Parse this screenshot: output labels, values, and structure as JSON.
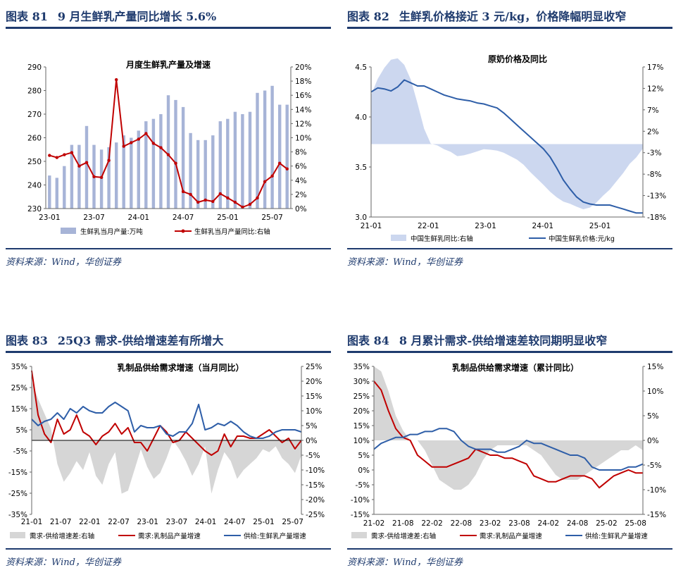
{
  "panels": [
    {
      "title_num": "图表 81",
      "title_text": "9 月生鲜乳产量同比增长 5.6%",
      "source": "资料来源：Wind，华创证券"
    },
    {
      "title_num": "图表 82",
      "title_text": "生鲜乳价格接近 3 元/kg，价格降幅明显收窄",
      "source": "资料来源：Wind，华创证券"
    },
    {
      "title_num": "图表 83",
      "title_text": "25Q3 需求-供给增速差有所增大",
      "source": "资料来源：Wind，华创证券"
    },
    {
      "title_num": "图表 84",
      "title_text": "8 月累计需求-供给增速差较同期明显收窄",
      "source": "资料来源：Wind，华创证券"
    }
  ],
  "colors": {
    "navy": "#1f3b6e",
    "bar": "#a7b4d7",
    "red": "#c00000",
    "blue": "#2e5ea8",
    "lightblue": "#ccd7ef",
    "gray": "#d6d6d6"
  },
  "chart_data": [
    {
      "type": "bar",
      "title": "月度生鲜乳产量及增速",
      "categories": [
        "23-01",
        "23-02",
        "23-03",
        "23-04",
        "23-05",
        "23-06",
        "23-07",
        "23-08",
        "23-09",
        "23-10",
        "23-11",
        "23-12",
        "24-01",
        "24-02",
        "24-03",
        "24-04",
        "24-05",
        "24-06",
        "24-07",
        "24-08",
        "24-09",
        "24-10",
        "24-11",
        "24-12",
        "25-01",
        "25-02",
        "25-03",
        "25-04",
        "25-05",
        "25-06",
        "25-07",
        "25-08",
        "25-09"
      ],
      "x_tick_labels": [
        "23-01",
        "23-07",
        "24-01",
        "24-07",
        "25-01",
        "25-07"
      ],
      "series": [
        {
          "name": "生鲜乳当月产量:万吨",
          "type": "bar",
          "axis": "left",
          "values": [
            244,
            243,
            248,
            257,
            257,
            265,
            257,
            255,
            256,
            258,
            261,
            260,
            263,
            267,
            268,
            270,
            278,
            276,
            273,
            262,
            259,
            259,
            261,
            267,
            268,
            271,
            270,
            271,
            279,
            280,
            282,
            274,
            274
          ]
        },
        {
          "name": "生鲜乳当月产量同比:右轴",
          "type": "line",
          "axis": "right",
          "values": [
            7.5,
            7.2,
            7.6,
            7.9,
            6.0,
            6.5,
            4.5,
            4.4,
            6.8,
            18.2,
            8.8,
            9.3,
            9.8,
            10.6,
            9.2,
            8.6,
            7.6,
            6.4,
            2.4,
            2.0,
            0.9,
            1.2,
            1.0,
            2.1,
            1.5,
            0.9,
            0.2,
            0.6,
            1.5,
            3.8,
            4.6,
            6.4,
            5.6
          ]
        }
      ],
      "ylim_left": [
        230,
        290
      ],
      "yticks_left": [
        230,
        240,
        250,
        260,
        270,
        280,
        290
      ],
      "ylim_right": [
        0,
        20
      ],
      "yticks_right": [
        "0%",
        "2%",
        "4%",
        "6%",
        "8%",
        "10%",
        "12%",
        "14%",
        "16%",
        "18%",
        "20%"
      ]
    },
    {
      "type": "area",
      "title": "原奶价格及同比",
      "x_tick_labels": [
        "21-01",
        "22-01",
        "23-01",
        "24-01",
        "25-01"
      ],
      "series": [
        {
          "name": "中国生鲜乳同比:右轴",
          "type": "area",
          "axis": "right",
          "values": [
            10.5,
            14.2,
            16.8,
            18.7,
            19.0,
            17.5,
            14.0,
            8.5,
            2.6,
            -0.9,
            -1.3,
            -2.2,
            -2.8,
            -3.8,
            -3.6,
            -3.2,
            -2.7,
            -2.2,
            -2.3,
            -2.5,
            -3.0,
            -3.8,
            -4.6,
            -5.8,
            -7.5,
            -9.0,
            -10.5,
            -12.1,
            -13.4,
            -14.4,
            -14.9,
            -15.6,
            -16.2,
            -15.8,
            -14.6,
            -13.0,
            -11.6,
            -9.7,
            -7.8,
            -5.6,
            -4.1,
            -2.0
          ]
        },
        {
          "name": "中国生鲜乳价格:元/kg",
          "type": "line",
          "axis": "left",
          "values": [
            4.25,
            4.29,
            4.28,
            4.26,
            4.3,
            4.37,
            4.34,
            4.31,
            4.31,
            4.28,
            4.25,
            4.22,
            4.2,
            4.18,
            4.17,
            4.16,
            4.14,
            4.13,
            4.11,
            4.09,
            4.04,
            3.98,
            3.92,
            3.86,
            3.8,
            3.74,
            3.68,
            3.6,
            3.49,
            3.37,
            3.28,
            3.2,
            3.15,
            3.13,
            3.12,
            3.12,
            3.12,
            3.1,
            3.08,
            3.06,
            3.04,
            3.04
          ]
        }
      ],
      "ylim_left": [
        3.0,
        4.5
      ],
      "yticks_left": [
        "3.0",
        "3.5",
        "4.0",
        "4.5"
      ],
      "ylim_right": [
        -18,
        17
      ],
      "yticks_right": [
        "-18%",
        "-13%",
        "-8%",
        "-3%",
        "2%",
        "7%",
        "12%",
        "17%"
      ]
    },
    {
      "type": "line",
      "title": "乳制品供给需求增速（当月同比）",
      "x_tick_labels": [
        "21-01",
        "21-07",
        "22-01",
        "22-07",
        "23-01",
        "23-07",
        "24-01",
        "24-07",
        "25-01",
        "25-07"
      ],
      "series": [
        {
          "name": "需求-供给增速差:右轴",
          "type": "area",
          "axis": "right",
          "values": [
            20,
            14,
            9,
            4,
            -8,
            -14,
            -11,
            -7,
            -10,
            -4,
            -12,
            -15,
            -8,
            -4,
            -18,
            -17,
            -10,
            -3,
            -9,
            -13,
            -11,
            -6,
            0,
            -3,
            -7,
            -12,
            -8,
            -2,
            -18,
            -10,
            -4,
            -7,
            -13,
            -10,
            -8,
            -6,
            -3,
            -4,
            -2,
            -6,
            -8,
            -11,
            -5
          ]
        },
        {
          "name": "需求:乳制品产量增速",
          "type": "line",
          "axis": "left",
          "values": [
            33,
            12,
            3,
            -1,
            10,
            3,
            5,
            12,
            4,
            2,
            -2,
            2,
            4,
            8,
            3,
            6,
            -1,
            -1,
            -5,
            1,
            7,
            4,
            -1,
            0,
            4,
            1,
            -2,
            -5,
            -7,
            -5,
            3,
            -3,
            2,
            2,
            1,
            1,
            3,
            5,
            2,
            -1,
            1,
            -4,
            0
          ]
        },
        {
          "name": "供给:生鲜乳产量增速",
          "type": "line",
          "axis": "left",
          "values": [
            10,
            7,
            9,
            10,
            13,
            10,
            15,
            13,
            16,
            14,
            13,
            13,
            16,
            18,
            16,
            14,
            4,
            7,
            6,
            6,
            7,
            3,
            2,
            4,
            4,
            8,
            17,
            5,
            6,
            8,
            7,
            9,
            7,
            4,
            2,
            1,
            1,
            2,
            4,
            5,
            5,
            5,
            4
          ]
        }
      ],
      "ylim_left": [
        -35,
        35
      ],
      "yticks_left": [
        "-35%",
        "-25%",
        "-15%",
        "-5%",
        "5%",
        "15%",
        "25%",
        "35%"
      ],
      "ylim_right": [
        -25,
        25
      ],
      "yticks_right": [
        "-25%",
        "-20%",
        "-15%",
        "-10%",
        "-5%",
        "0%",
        "5%",
        "10%",
        "15%",
        "20%",
        "25%"
      ]
    },
    {
      "type": "line",
      "title": "乳制品供给需求增速（累计同比）",
      "x_tick_labels": [
        "21-02",
        "21-08",
        "22-02",
        "22-08",
        "23-02",
        "23-08",
        "24-02",
        "24-08",
        "25-02",
        "25-08"
      ],
      "series": [
        {
          "name": "需求-供给增速差:右轴",
          "type": "area",
          "axis": "right",
          "values": [
            15,
            14,
            10,
            5,
            2,
            0,
            0,
            -2,
            -5,
            -8,
            -9,
            -10,
            -10,
            -9,
            -7,
            -4,
            -2,
            -1,
            -1,
            -1,
            -1,
            -1,
            -2,
            -3,
            -5,
            -7,
            -8,
            -8,
            -8,
            -7,
            -6,
            -5,
            -4,
            -3,
            -2,
            -2,
            -1,
            -2
          ]
        },
        {
          "name": "需求:乳制品产量增速",
          "type": "line",
          "axis": "left",
          "values": [
            30,
            27,
            20,
            14,
            11,
            10,
            5,
            3,
            1,
            1,
            1,
            2,
            3,
            4,
            7,
            6,
            5,
            5,
            4,
            4,
            3,
            2,
            -2,
            -3,
            -4,
            -4,
            -3,
            -2,
            -2,
            -2,
            -3,
            -6,
            -4,
            -2,
            -1,
            0,
            -1,
            -1
          ]
        },
        {
          "name": "供给:生鲜乳产量增速",
          "type": "line",
          "axis": "left",
          "values": [
            7,
            9,
            10,
            11,
            11,
            12,
            12,
            13,
            13,
            14,
            14,
            13,
            10,
            8,
            7,
            7,
            7,
            6,
            6,
            7,
            8,
            10,
            9,
            9,
            8,
            7,
            6,
            5,
            5,
            4,
            1,
            0,
            0,
            0,
            0,
            1,
            1,
            2
          ]
        }
      ],
      "ylim_left": [
        -15,
        35
      ],
      "yticks_left": [
        "-15%",
        "-10%",
        "-5%",
        "0%",
        "5%",
        "10%",
        "15%",
        "20%",
        "25%",
        "30%",
        "35%"
      ],
      "ylim_right": [
        -15,
        15
      ],
      "yticks_right": [
        "-15%",
        "-10%",
        "-5%",
        "0%",
        "5%",
        "10%",
        "15%"
      ]
    }
  ]
}
